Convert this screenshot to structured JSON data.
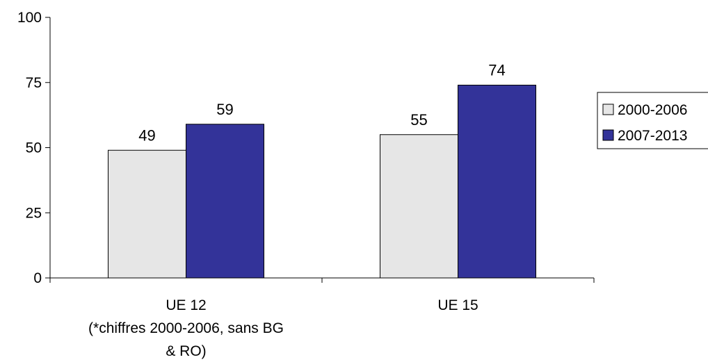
{
  "chart_data": {
    "type": "bar",
    "title": "",
    "xlabel": "",
    "ylabel": "",
    "ylim": [
      0,
      100
    ],
    "yticks": [
      "0",
      "25",
      "50",
      "75",
      "100"
    ],
    "categories": [
      [
        "UE 12",
        "(*chiffres 2000-2006, sans BG",
        "& RO)"
      ],
      [
        "UE 15"
      ]
    ],
    "series": [
      {
        "name": "2000-2006",
        "values": [
          49,
          55
        ],
        "color": "#e6e6e6"
      },
      {
        "name": "2007-2013",
        "values": [
          59,
          74
        ],
        "color": "#333399"
      }
    ],
    "grid": false,
    "legend": "right",
    "data_labels": true
  }
}
